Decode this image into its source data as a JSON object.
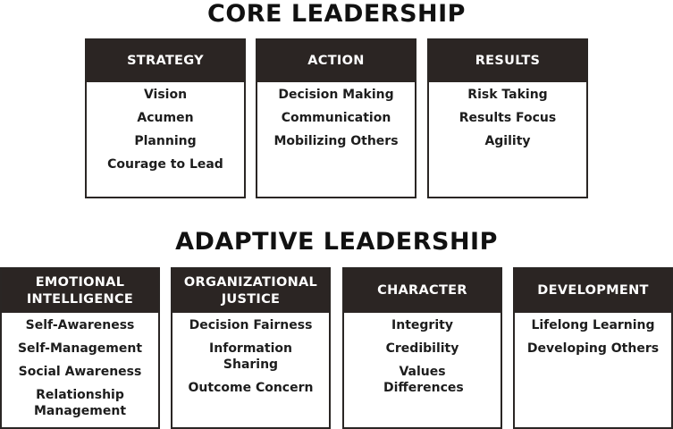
{
  "core": {
    "title": "CORE LEADERSHIP",
    "boxes": [
      {
        "header": [
          "STRATEGY"
        ],
        "items": [
          "Vision",
          "Acumen",
          "Planning",
          "Courage to Lead"
        ]
      },
      {
        "header": [
          "ACTION"
        ],
        "items": [
          "Decision Making",
          "Communication",
          "Mobilizing Others"
        ]
      },
      {
        "header": [
          "RESULTS"
        ],
        "items": [
          "Risk Taking",
          "Results Focus",
          "Agility"
        ]
      }
    ]
  },
  "adaptive": {
    "title": "ADAPTIVE LEADERSHIP",
    "boxes": [
      {
        "header": [
          "EMOTIONAL",
          "INTELLIGENCE"
        ],
        "items": [
          "Self-Awareness",
          "Self-Management",
          "Social Awareness",
          "Relationship Management"
        ]
      },
      {
        "header": [
          "ORGANIZATIONAL",
          "JUSTICE"
        ],
        "items": [
          "Decision Fairness",
          "Information Sharing",
          "Outcome Concern"
        ]
      },
      {
        "header": [
          "CHARACTER"
        ],
        "items": [
          "Integrity",
          "Credibility",
          "Values Differences"
        ]
      },
      {
        "header": [
          "DEVELOPMENT"
        ],
        "items": [
          "Lifelong Learning",
          "Developing Others"
        ]
      }
    ]
  }
}
